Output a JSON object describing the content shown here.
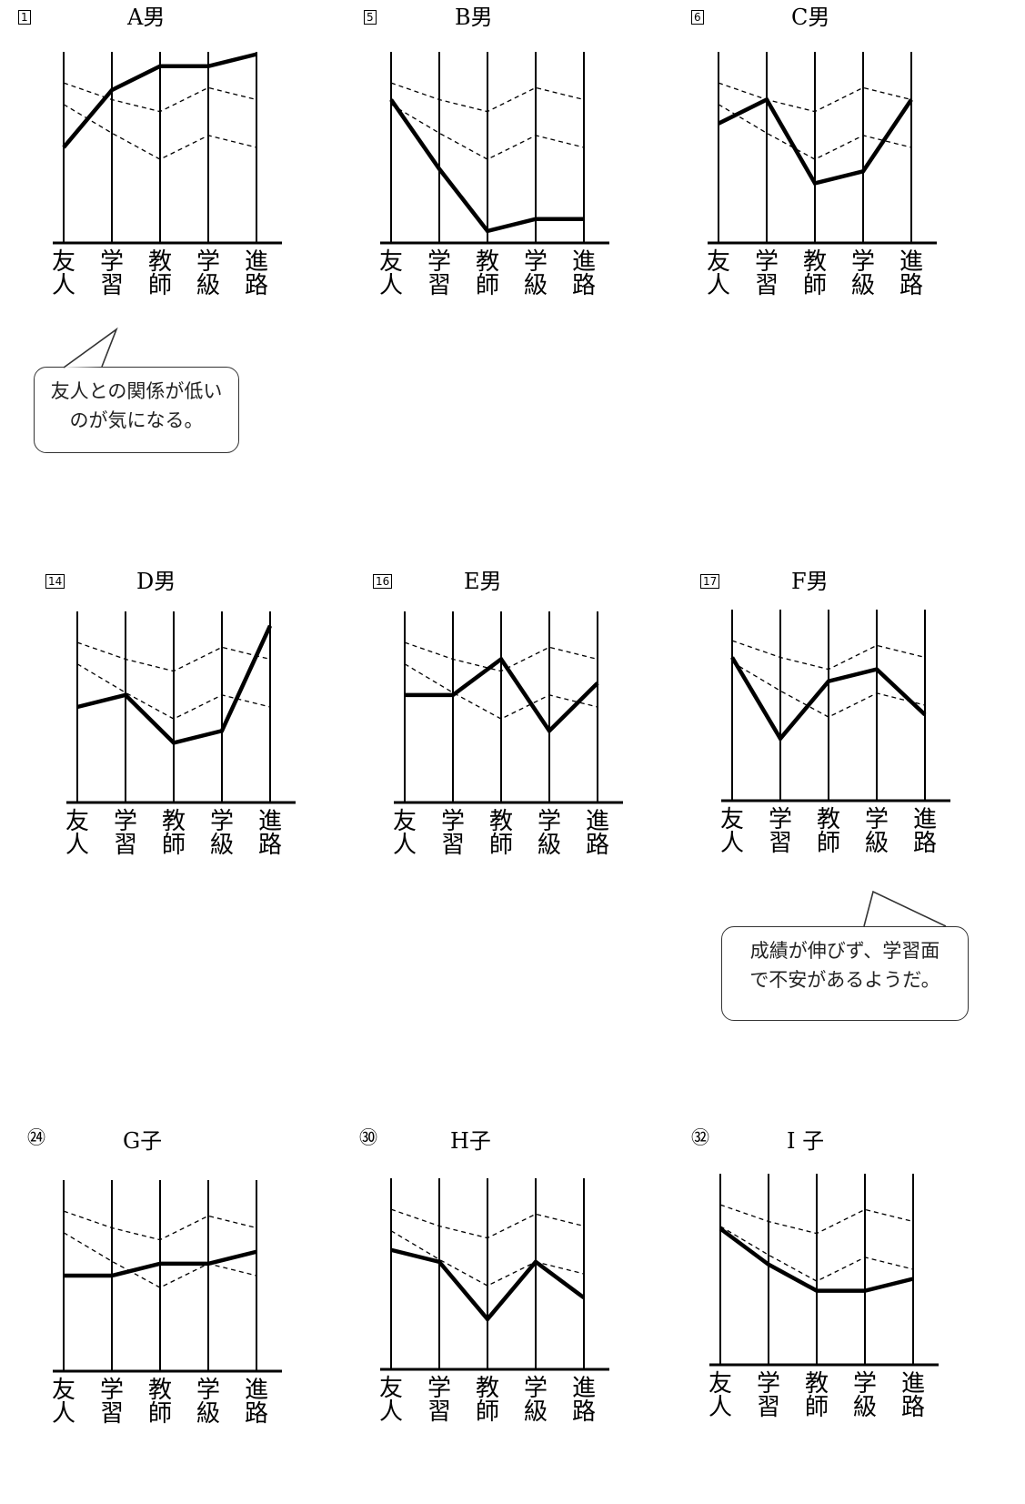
{
  "axis_labels": [
    "友\n人",
    "学\n習",
    "教\n師",
    "学\n級",
    "進\n路"
  ],
  "chart_data": [
    {
      "type": "line",
      "number": "1",
      "title": "A男",
      "categories": [
        "友人",
        "学習",
        "教師",
        "学級",
        "進路"
      ],
      "series": [
        {
          "values": [
            4.0,
            6.4,
            7.4,
            7.4,
            7.9
          ]
        }
      ],
      "reference_upper": [
        6.7,
        6.0,
        5.5,
        6.5,
        6.0
      ],
      "reference_lower": [
        5.8,
        4.6,
        3.5,
        4.5,
        4.0
      ]
    },
    {
      "type": "line",
      "number": "5",
      "title": "B男",
      "categories": [
        "友人",
        "学習",
        "教師",
        "学級",
        "進路"
      ],
      "series": [
        {
          "values": [
            6.0,
            3.1,
            0.5,
            1.0,
            1.0
          ]
        }
      ],
      "reference_upper": [
        6.7,
        6.0,
        5.5,
        6.5,
        6.0
      ],
      "reference_lower": [
        5.8,
        4.6,
        3.5,
        4.5,
        4.0
      ]
    },
    {
      "type": "line",
      "number": "6",
      "title": "C男",
      "categories": [
        "友人",
        "学習",
        "教師",
        "学級",
        "進路"
      ],
      "series": [
        {
          "values": [
            5.0,
            6.0,
            2.5,
            3.0,
            6.0
          ]
        }
      ],
      "reference_upper": [
        6.7,
        6.0,
        5.5,
        6.5,
        6.0
      ],
      "reference_lower": [
        5.8,
        4.6,
        3.5,
        4.5,
        4.0
      ]
    },
    {
      "type": "line",
      "number": "14",
      "title": "D男",
      "categories": [
        "友人",
        "学習",
        "教師",
        "学級",
        "進路"
      ],
      "series": [
        {
          "values": [
            4.0,
            4.5,
            2.5,
            3.0,
            7.4
          ]
        }
      ],
      "reference_upper": [
        6.7,
        6.0,
        5.5,
        6.5,
        6.0
      ],
      "reference_lower": [
        5.8,
        4.6,
        3.5,
        4.5,
        4.0
      ]
    },
    {
      "type": "line",
      "number": "16",
      "title": "E男",
      "categories": [
        "友人",
        "学習",
        "教師",
        "学級",
        "進路"
      ],
      "series": [
        {
          "values": [
            4.5,
            4.5,
            6.0,
            3.0,
            5.0
          ]
        }
      ],
      "reference_upper": [
        6.7,
        6.0,
        5.5,
        6.5,
        6.0
      ],
      "reference_lower": [
        5.8,
        4.6,
        3.5,
        4.5,
        4.0
      ]
    },
    {
      "type": "line",
      "number": "17",
      "title": "F男",
      "categories": [
        "友人",
        "学習",
        "教師",
        "学級",
        "進路"
      ],
      "series": [
        {
          "values": [
            6.0,
            2.6,
            5.0,
            5.5,
            3.6
          ]
        }
      ],
      "reference_upper": [
        6.7,
        6.0,
        5.5,
        6.5,
        6.0
      ],
      "reference_lower": [
        5.8,
        4.6,
        3.5,
        4.5,
        4.0
      ]
    },
    {
      "type": "line",
      "number": "24",
      "title": "G子",
      "categories": [
        "友人",
        "学習",
        "教師",
        "学級",
        "進路"
      ],
      "series": [
        {
          "values": [
            4.0,
            4.0,
            4.5,
            4.5,
            5.0
          ]
        }
      ],
      "reference_upper": [
        6.7,
        6.0,
        5.5,
        6.5,
        6.0
      ],
      "reference_lower": [
        5.8,
        4.6,
        3.5,
        4.5,
        4.0
      ]
    },
    {
      "type": "line",
      "number": "30",
      "title": "H子",
      "categories": [
        "友人",
        "学習",
        "教師",
        "学級",
        "進路"
      ],
      "series": [
        {
          "values": [
            5.0,
            4.5,
            2.1,
            4.5,
            3.0
          ]
        }
      ],
      "reference_upper": [
        6.7,
        6.0,
        5.5,
        6.5,
        6.0
      ],
      "reference_lower": [
        5.8,
        4.6,
        3.5,
        4.5,
        4.0
      ]
    },
    {
      "type": "line",
      "number": "32",
      "title": "I 子",
      "categories": [
        "友人",
        "学習",
        "教師",
        "学級",
        "進路"
      ],
      "series": [
        {
          "values": [
            5.7,
            4.2,
            3.1,
            3.1,
            3.6
          ]
        }
      ],
      "reference_upper": [
        6.7,
        6.0,
        5.5,
        6.5,
        6.0
      ],
      "reference_lower": [
        5.8,
        4.6,
        3.5,
        4.5,
        4.0
      ]
    }
  ],
  "comments": [
    {
      "text": "友人との関係が低い\nのが気になる。"
    },
    {
      "text": "成績が伸びず、学習面\nで不安があるようだ。"
    }
  ]
}
